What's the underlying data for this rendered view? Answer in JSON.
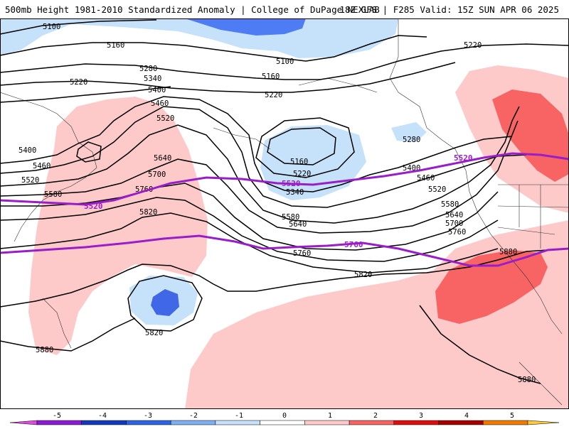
{
  "header": {
    "title_left": "500mb Height 1981-2010 Standardized Anomaly | College of DuPage NEXLAB",
    "title_right": "18Z GFS | F285 Valid: 15Z SUN APR 06 2025"
  },
  "colors": {
    "pos1": "#fdc9c9",
    "pos2": "#f86464",
    "neg1": "#c6e1fa",
    "neg2": "#4d7cf5",
    "neg3": "#4067e6",
    "climo_line": "#9a1ec8"
  },
  "contour_labels": {
    "l5100a": "5100",
    "l5100b": "5100",
    "l5160a": "5160",
    "l5160b": "5160",
    "l5160c": "5160",
    "l5220a": "5220",
    "l5220b": "5220",
    "l5220c": "5220",
    "l5220d": "5220",
    "l5280a": "5280",
    "l5280b": "5280",
    "l5340a": "5340",
    "l5340b": "5340",
    "l5400a": "5400",
    "l5400b": "5400",
    "l5400c": "5400",
    "l5460a": "5460",
    "l5460b": "5460",
    "l5460c": "5460",
    "l5520a": "5520",
    "l5520b": "5520",
    "l5520c": "5520",
    "l5580a": "5580",
    "l5580b": "5580",
    "l5580c": "5580",
    "l5640a": "5640",
    "l5640b": "5640",
    "l5640c": "5640",
    "l5700a": "5700",
    "l5700b": "5700",
    "l5760a": "5760",
    "l5760b": "5760",
    "l5760c": "5760",
    "l5820a": "5820",
    "l5820b": "5820",
    "l5820c": "5820",
    "l5880a": "5880",
    "l5880b": "5880",
    "l5880c": "5880"
  },
  "climo_labels": {
    "c5520a": "5520",
    "c5520b": "5520",
    "c5520c": "5520",
    "c5760a": "5760"
  },
  "colorbar": {
    "ticks": [
      "-5",
      "-4",
      "-3",
      "-2",
      "-1",
      "0",
      "1",
      "2",
      "3",
      "4",
      "5"
    ],
    "segments": [
      {
        "color": "#e14be0"
      },
      {
        "color": "#8a1bd0"
      },
      {
        "color": "#123ab8"
      },
      {
        "color": "#2f63e0"
      },
      {
        "color": "#7fb0f2"
      },
      {
        "color": "#c6e1fa"
      },
      {
        "color": "#ffffff"
      },
      {
        "color": "#fdc9c9"
      },
      {
        "color": "#f86464"
      },
      {
        "color": "#dc0f0f"
      },
      {
        "color": "#a40000"
      },
      {
        "color": "#f07b00"
      },
      {
        "color": "#ffc93a"
      }
    ]
  }
}
